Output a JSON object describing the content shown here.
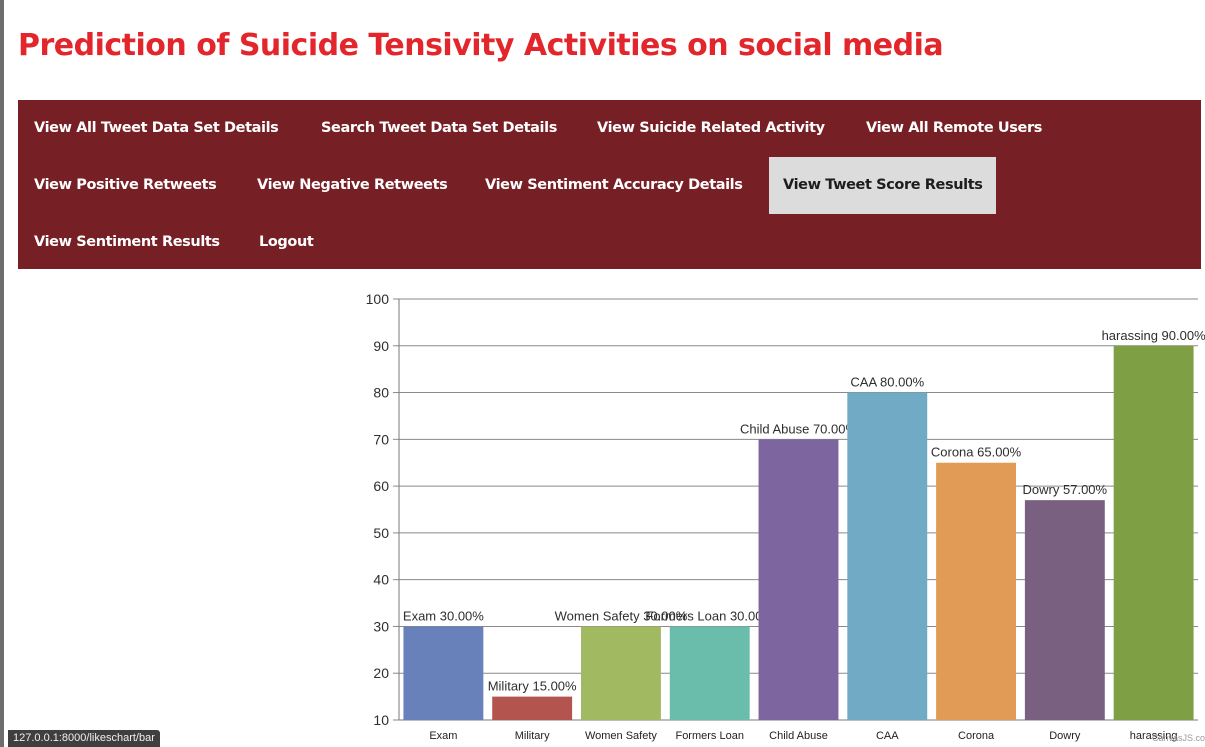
{
  "page": {
    "title": "Prediction of Suicide Tensivity Activities on social media",
    "status_url": "127.0.0.1:8000/likeschart/bar",
    "credit": "CanvasJS.com"
  },
  "menu": {
    "items": [
      {
        "label": "View All Tweet Data Set Details"
      },
      {
        "label": "Search Tweet Data Set Details"
      },
      {
        "label": "View Suicide Related Activity"
      },
      {
        "label": "View All Remote Users"
      },
      {
        "label": "View Positive Retweets"
      },
      {
        "label": "View Negative Retweets"
      },
      {
        "label": "View Sentiment Accuracy Details"
      },
      {
        "label": "View Tweet Score Results",
        "active": true
      },
      {
        "label": "View Sentiment Results"
      },
      {
        "label": "Logout"
      }
    ]
  },
  "colors": {
    "title": "#e3262b",
    "menu_bg": "#761f25",
    "menu_text": "#ffffff",
    "menu_active_bg": "#dcdcdc"
  },
  "chart_data": {
    "type": "bar",
    "categories": [
      "Exam",
      "Military",
      "Women Safety",
      "Formers Loan",
      "Child Abuse",
      "CAA",
      "Corona",
      "Dowry",
      "harassing"
    ],
    "values": [
      30,
      15,
      30,
      30,
      70,
      80,
      65,
      57,
      90
    ],
    "data_labels": [
      "Exam 30.00%",
      "Military 15.00%",
      "Women Safety 30.00%",
      "Formers Loan 30.00%",
      "Child Abuse 70.00%",
      "CAA 80.00%",
      "Corona 65.00%",
      "Dowry 57.00%",
      "harassing 90.00%"
    ],
    "colors": [
      "#6881bb",
      "#b3544f",
      "#a1ba62",
      "#6bbdab",
      "#7d66a0",
      "#70aac4",
      "#e19b56",
      "#7a6080",
      "#7f9f45"
    ],
    "ylim": [
      10,
      100
    ],
    "yticks": [
      10,
      20,
      30,
      40,
      50,
      60,
      70,
      80,
      90,
      100
    ],
    "grid": true
  }
}
